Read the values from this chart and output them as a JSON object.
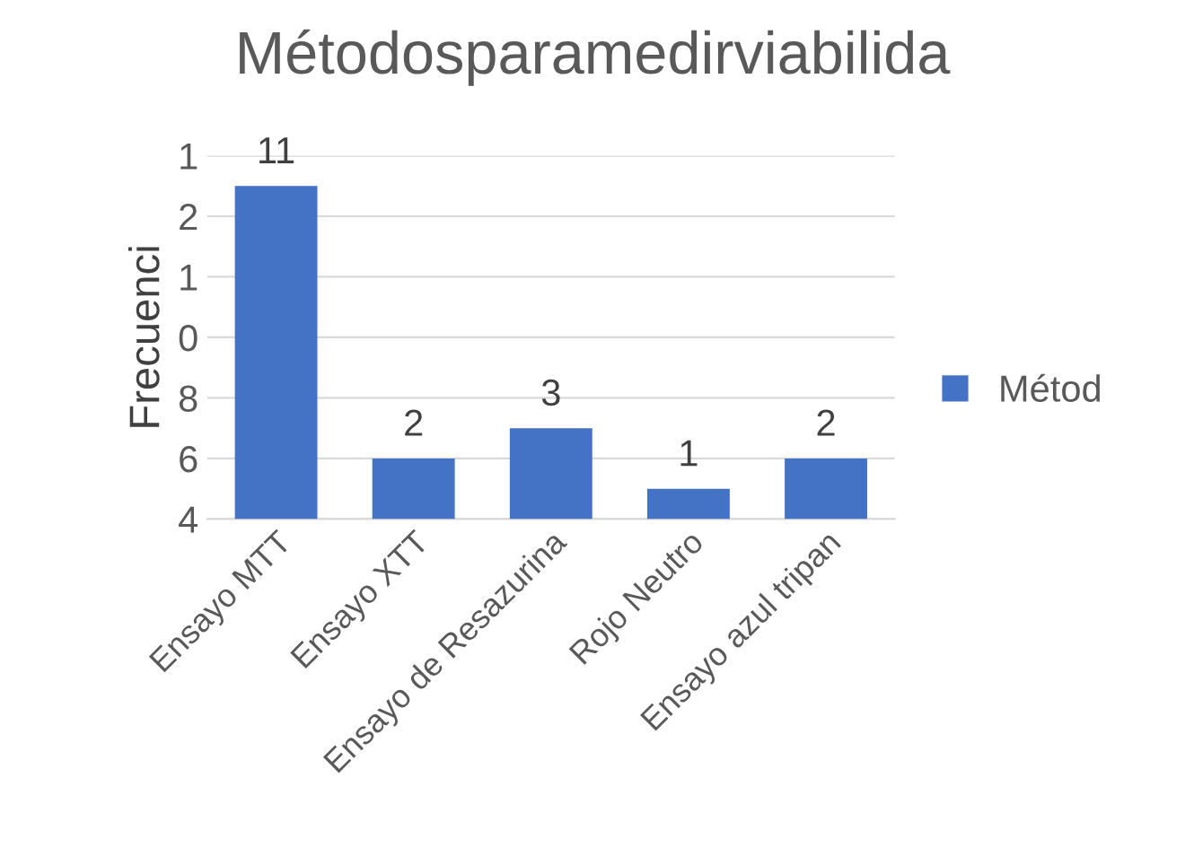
{
  "chart_data": {
    "type": "bar",
    "title": "Métodosparamedirviabilida",
    "ylabel": "Frecuenci",
    "categories": [
      "Ensayo MTT",
      "Ensayo XTT",
      "Ensayo de Resazurina",
      "Rojo Neutro",
      "Ensayo azul tripan"
    ],
    "series": [
      {
        "name": "Métod",
        "color": "#4472c4",
        "values": [
          11,
          2,
          3,
          1,
          2
        ]
      }
    ],
    "ylim": [
      0,
      12
    ],
    "annotations": [
      "1",
      "2",
      "1",
      "0",
      "8",
      "6",
      "4"
    ],
    "grid": "y",
    "legend": "right",
    "data_labels": true
  }
}
